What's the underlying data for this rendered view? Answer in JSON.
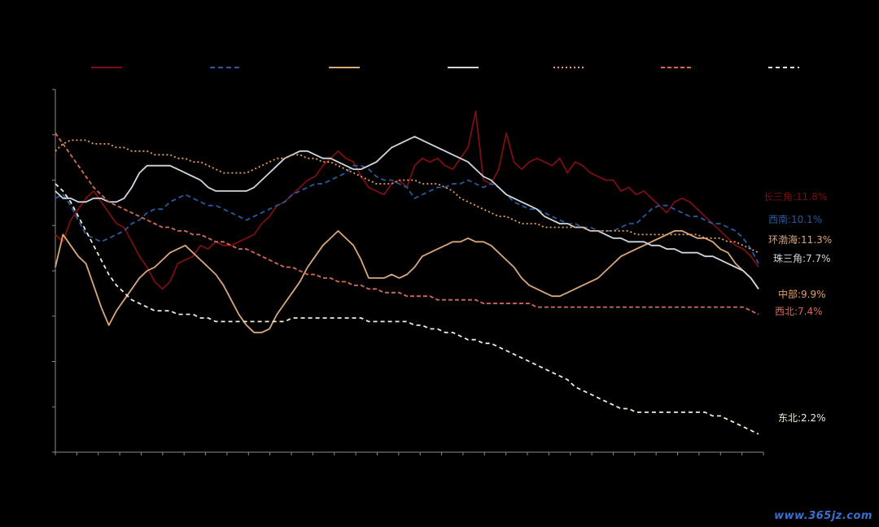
{
  "chart_data": {
    "type": "line",
    "title": "",
    "xlabel": "",
    "ylabel": "",
    "ylim": [
      0,
      100
    ],
    "grid": false,
    "legend_position": "top",
    "series": [
      {
        "label": "长三角:11.8%",
        "color": "#7a0f12",
        "dash": "",
        "values": [
          60,
          58,
          64,
          67,
          70,
          72,
          69,
          66,
          63,
          62,
          58,
          54,
          51,
          47,
          45,
          47,
          52,
          53,
          54,
          57,
          56,
          58,
          57,
          57,
          58,
          59,
          60,
          63,
          65,
          68,
          69,
          71,
          73,
          75,
          76,
          79,
          81,
          83,
          81,
          80,
          76,
          73,
          72,
          71,
          74,
          75,
          73,
          79,
          81,
          80,
          81,
          79,
          78,
          81,
          84,
          94,
          75,
          74,
          78,
          88,
          80,
          78,
          80,
          81,
          80,
          79,
          81,
          77,
          80,
          79,
          77,
          76,
          75,
          75,
          72,
          73,
          71,
          72,
          70,
          68,
          66,
          69,
          70,
          69,
          67,
          65,
          63,
          61,
          59,
          57,
          56,
          54,
          51
        ]
      },
      {
        "label": "西南:10.1%",
        "color": "#2a5a9e",
        "dash": "6 4",
        "values": [
          70,
          71,
          68,
          64,
          60,
          59,
          58,
          59,
          60,
          61,
          63,
          64,
          66,
          67,
          67,
          69,
          70,
          71,
          70,
          69,
          68,
          68,
          67,
          66,
          65,
          64,
          65,
          66,
          67,
          68,
          69,
          71,
          72,
          73,
          74,
          74,
          75,
          76,
          77,
          79,
          79,
          78,
          76,
          75,
          75,
          74,
          73,
          70,
          71,
          72,
          73,
          73,
          74,
          74,
          75,
          74,
          73,
          74,
          73,
          71,
          69,
          68,
          67,
          67,
          66,
          65,
          64,
          63,
          63,
          62,
          62,
          61,
          61,
          61,
          62,
          63,
          63,
          65,
          67,
          68,
          68,
          67,
          66,
          65,
          65,
          64,
          63,
          63,
          62,
          61,
          59,
          56,
          52
        ]
      },
      {
        "label": "环渤海:11.3%",
        "color": "#d8a77a",
        "dash": "",
        "values": [
          51,
          60,
          57,
          54,
          52,
          46,
          40,
          35,
          39,
          42,
          45,
          48,
          50,
          51,
          53,
          55,
          56,
          57,
          55,
          53,
          51,
          49,
          46,
          42,
          38,
          35,
          33,
          33,
          34,
          38,
          41,
          44,
          47,
          51,
          54,
          57,
          59,
          61,
          59,
          57,
          53,
          48,
          48,
          48,
          49,
          48,
          49,
          51,
          54,
          55,
          56,
          57,
          58,
          58,
          59,
          58,
          58,
          57,
          55,
          53,
          51,
          48,
          46,
          45,
          44,
          43,
          43,
          44,
          45,
          46,
          47,
          48,
          50,
          52,
          54,
          55,
          56,
          57,
          58,
          59,
          60,
          61,
          61,
          60,
          59,
          59,
          58,
          56,
          55,
          52,
          50,
          48,
          45
        ]
      },
      {
        "label": "珠三角:7.7%",
        "color": "#d0d6de",
        "dash": "",
        "values": [
          72,
          70,
          70,
          69,
          69,
          70,
          70,
          69,
          69,
          70,
          73,
          77,
          79,
          79,
          79,
          79,
          78,
          77,
          76,
          75,
          73,
          72,
          72,
          72,
          72,
          72,
          73,
          75,
          77,
          79,
          81,
          82,
          83,
          83,
          82,
          81,
          81,
          80,
          79,
          78,
          78,
          79,
          80,
          82,
          84,
          85,
          86,
          87,
          86,
          85,
          84,
          83,
          82,
          81,
          80,
          78,
          76,
          75,
          73,
          71,
          70,
          69,
          68,
          67,
          65,
          64,
          63,
          63,
          62,
          62,
          61,
          61,
          60,
          59,
          59,
          58,
          58,
          58,
          57,
          57,
          56,
          56,
          55,
          55,
          55,
          54,
          54,
          53,
          52,
          51,
          50,
          48,
          45
        ]
      },
      {
        "label": "中部:9.9%",
        "color": "#e8a060",
        "dash": "2 3",
        "values": [
          83,
          85,
          86,
          86,
          86,
          85,
          85,
          85,
          84,
          84,
          83,
          83,
          83,
          82,
          82,
          82,
          81,
          81,
          80,
          80,
          79,
          78,
          77,
          77,
          77,
          77,
          78,
          79,
          80,
          81,
          81,
          82,
          82,
          81,
          81,
          80,
          80,
          79,
          78,
          77,
          76,
          75,
          74,
          74,
          74,
          75,
          75,
          75,
          74,
          74,
          74,
          73,
          72,
          70,
          69,
          68,
          67,
          66,
          65,
          65,
          64,
          63,
          63,
          63,
          62,
          62,
          62,
          62,
          62,
          62,
          61,
          61,
          61,
          61,
          61,
          61,
          60,
          60,
          60,
          60,
          60,
          60,
          60,
          60,
          60,
          59,
          59,
          59,
          58,
          58,
          57,
          56,
          55
        ]
      },
      {
        "label": "西北:7.4%",
        "color": "#d46a5a",
        "dash": "5 3",
        "values": [
          88,
          85,
          82,
          79,
          76,
          73,
          71,
          69,
          68,
          67,
          66,
          65,
          64,
          63,
          62,
          62,
          61,
          61,
          60,
          60,
          59,
          58,
          58,
          57,
          56,
          56,
          55,
          54,
          53,
          52,
          51,
          51,
          50,
          49,
          49,
          48,
          48,
          47,
          47,
          46,
          46,
          45,
          45,
          44,
          44,
          44,
          43,
          43,
          43,
          43,
          42,
          42,
          42,
          42,
          42,
          42,
          41,
          41,
          41,
          41,
          41,
          41,
          41,
          40,
          40,
          40,
          40,
          40,
          40,
          40,
          40,
          40,
          40,
          40,
          40,
          40,
          40,
          40,
          40,
          40,
          40,
          40,
          40,
          40,
          40,
          40,
          40,
          40,
          40,
          40,
          40,
          39,
          38
        ]
      },
      {
        "label": "东北:2.2%",
        "color": "#f2ecd8",
        "dash": "5 4",
        "values": [
          74,
          72,
          69,
          65,
          61,
          57,
          53,
          49,
          46,
          44,
          42,
          41,
          40,
          39,
          39,
          39,
          38,
          38,
          38,
          37,
          37,
          36,
          36,
          36,
          36,
          36,
          36,
          36,
          36,
          36,
          36,
          37,
          37,
          37,
          37,
          37,
          37,
          37,
          37,
          37,
          37,
          36,
          36,
          36,
          36,
          36,
          36,
          35,
          35,
          34,
          34,
          33,
          33,
          32,
          31,
          31,
          30,
          30,
          29,
          28,
          27,
          26,
          25,
          24,
          23,
          22,
          21,
          20,
          18,
          17,
          16,
          15,
          14,
          13,
          12,
          12,
          11,
          11,
          11,
          11,
          11,
          11,
          11,
          11,
          11,
          11,
          10,
          10,
          9,
          8,
          7,
          6,
          5
        ]
      }
    ]
  },
  "watermark": "www.365jz.com"
}
